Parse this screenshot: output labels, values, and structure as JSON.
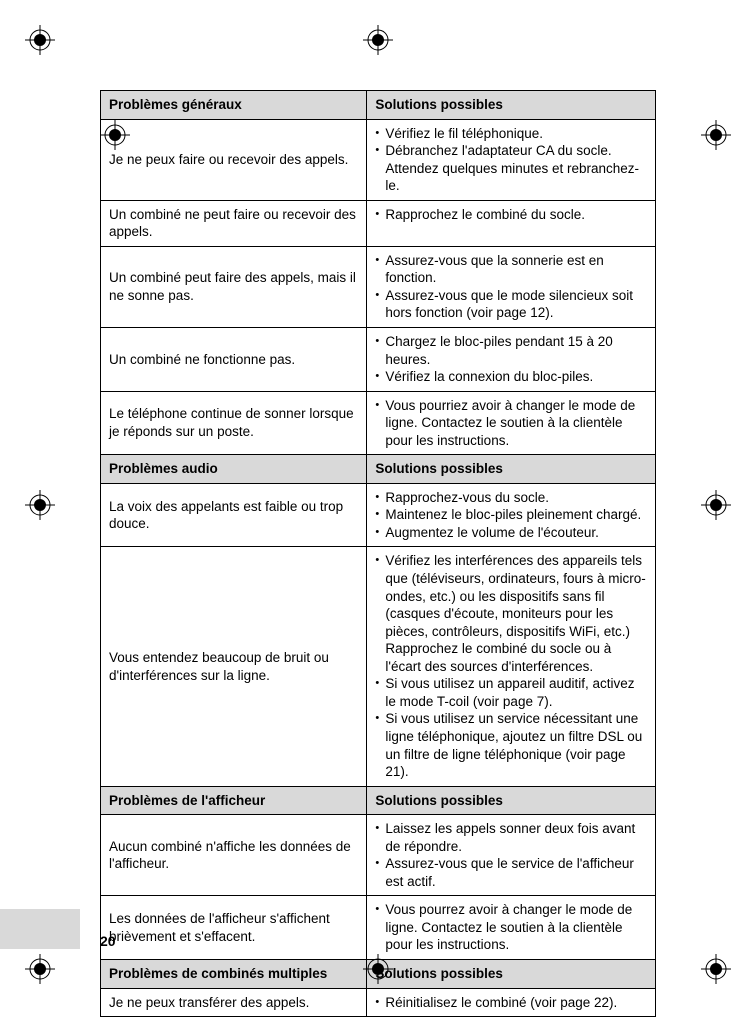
{
  "page_number": "20",
  "section1": {
    "h1": "Problèmes généraux",
    "h2": "Solutions possibles",
    "rows": [
      {
        "problem": "Je ne peux faire ou recevoir des appels.",
        "solutions": [
          "Vérifiez le fil téléphonique.",
          "Débranchez l'adaptateur CA du socle. Attendez quelques minutes et rebranchez-le."
        ]
      },
      {
        "problem": "Un combiné ne peut faire ou recevoir des appels.",
        "solutions": [
          "Rapprochez le combiné du socle."
        ]
      },
      {
        "problem": "Un combiné peut faire des appels, mais il ne sonne pas.",
        "solutions": [
          "Assurez-vous que la sonnerie est en fonction.",
          "Assurez-vous que le mode silencieux soit hors fonction (voir page 12)."
        ]
      },
      {
        "problem": "Un combiné ne fonctionne pas.",
        "solutions": [
          "Chargez le bloc-piles pendant 15 à 20 heures.",
          "Vérifiez la connexion du bloc-piles."
        ]
      },
      {
        "problem": "Le téléphone continue de sonner lorsque je réponds sur un poste.",
        "solutions": [
          "Vous pourriez avoir à changer le mode de ligne. Contactez le soutien à la clientèle pour les instructions."
        ]
      }
    ]
  },
  "section2": {
    "h1": "Problèmes audio",
    "h2": "Solutions possibles",
    "rows": [
      {
        "problem": "La voix des appelants est faible ou trop douce.",
        "solutions": [
          "Rapprochez-vous du socle.",
          "Maintenez le bloc-piles pleinement chargé.",
          "Augmentez le volume de l'écouteur."
        ]
      },
      {
        "problem": "Vous entendez beaucoup de bruit ou d'interférences sur la ligne.",
        "solutions": [
          "Vérifiez les interférences des appareils tels que (téléviseurs, ordinateurs, fours à micro-ondes, etc.) ou les dispositifs sans fil (casques d'écoute, moniteurs pour les pièces, contrôleurs, dispositifs WiFi, etc.) Rapprochez le combiné du socle ou à l'écart des sources d'interférences.",
          "Si vous utilisez un appareil auditif, activez le mode T-coil (voir page 7).",
          "Si vous utilisez un service nécessitant une ligne téléphonique, ajoutez un filtre DSL ou un filtre de ligne téléphonique (voir page 21)."
        ]
      }
    ]
  },
  "section3": {
    "h1": "Problèmes de l'afficheur",
    "h2": "Solutions possibles",
    "rows": [
      {
        "problem": "Aucun combiné n'affiche les données de l'afficheur.",
        "solutions": [
          "Laissez les appels sonner deux fois avant de répondre.",
          "Assurez-vous que le service de l'afficheur est actif."
        ]
      },
      {
        "problem": "Les données de l'afficheur s'affichent brièvement et s'effacent.",
        "solutions": [
          "Vous pourrez avoir à changer le mode de ligne. Contactez le soutien à la clientèle pour les instructions."
        ]
      }
    ]
  },
  "section4": {
    "h1": "Problèmes de combinés multiples",
    "h2": "Solutions possibles",
    "rows": [
      {
        "problem": "Je ne peux transférer des appels.",
        "solutions": [
          "Réinitialisez le combiné (voir page 22)."
        ]
      }
    ]
  },
  "col_widths": {
    "s1_left": "38%",
    "s2_left": "25%",
    "s3_left": "35%",
    "s4_left": "48%"
  },
  "colors": {
    "header_bg": "#d9d9d9",
    "text": "#000000",
    "border": "#000000"
  }
}
